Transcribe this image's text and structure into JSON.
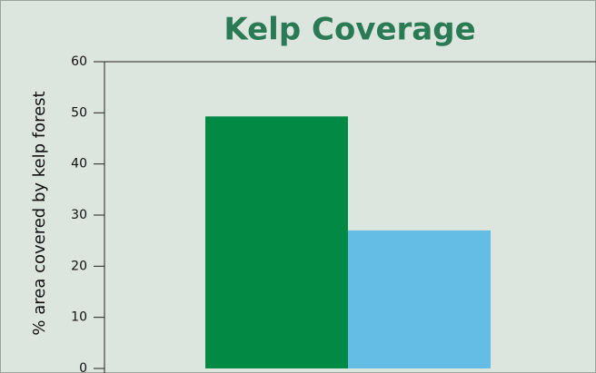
{
  "chart_data": {
    "type": "bar",
    "title": "Kelp Coverage",
    "ylabel": "% area covered by kelp forest",
    "categories": [
      null,
      null
    ],
    "values": [
      49.3,
      27
    ],
    "colors": [
      "#028a45",
      "#63bde5"
    ],
    "ylim": [
      0,
      60
    ],
    "yticks": [
      0,
      10,
      20,
      30,
      40,
      50,
      60
    ]
  }
}
